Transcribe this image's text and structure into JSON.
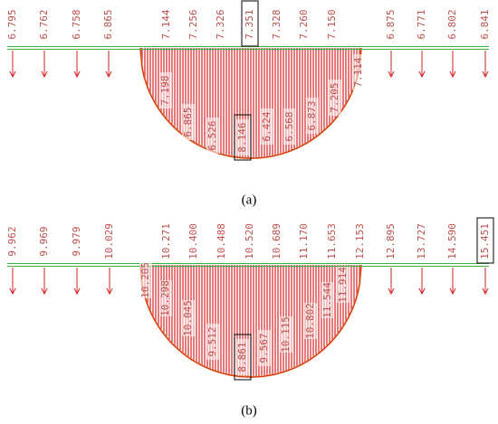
{
  "panels": [
    {
      "caption": "(a)",
      "top_labels": [
        "6.795",
        "6.762",
        "6.758",
        "6.865",
        "7.144",
        "7.256",
        "7.326",
        "7.351",
        "7.328",
        "7.260",
        "7.150",
        "6.875",
        "6.771",
        "6.802",
        "6.841"
      ],
      "inner_labels": [
        "7.198",
        "6.865",
        "6.526",
        "8.146",
        "6.424",
        "6.568",
        "6.873",
        "7.205",
        "7.114"
      ]
    },
    {
      "caption": "(b)",
      "top_labels": [
        "9.962",
        "9.969",
        "9.979",
        "10.029",
        "10.271",
        "10.400",
        "10.488",
        "10.520",
        "10.689",
        "11.170",
        "11.653",
        "12.153",
        "12.895",
        "13.727",
        "14.590",
        "15.451"
      ],
      "inner_labels": [
        "10.205",
        "10.298",
        "10.045",
        "9.512",
        "8.861",
        "9.567",
        "10.115",
        "10.802",
        "11.544",
        "11.914"
      ]
    }
  ]
}
